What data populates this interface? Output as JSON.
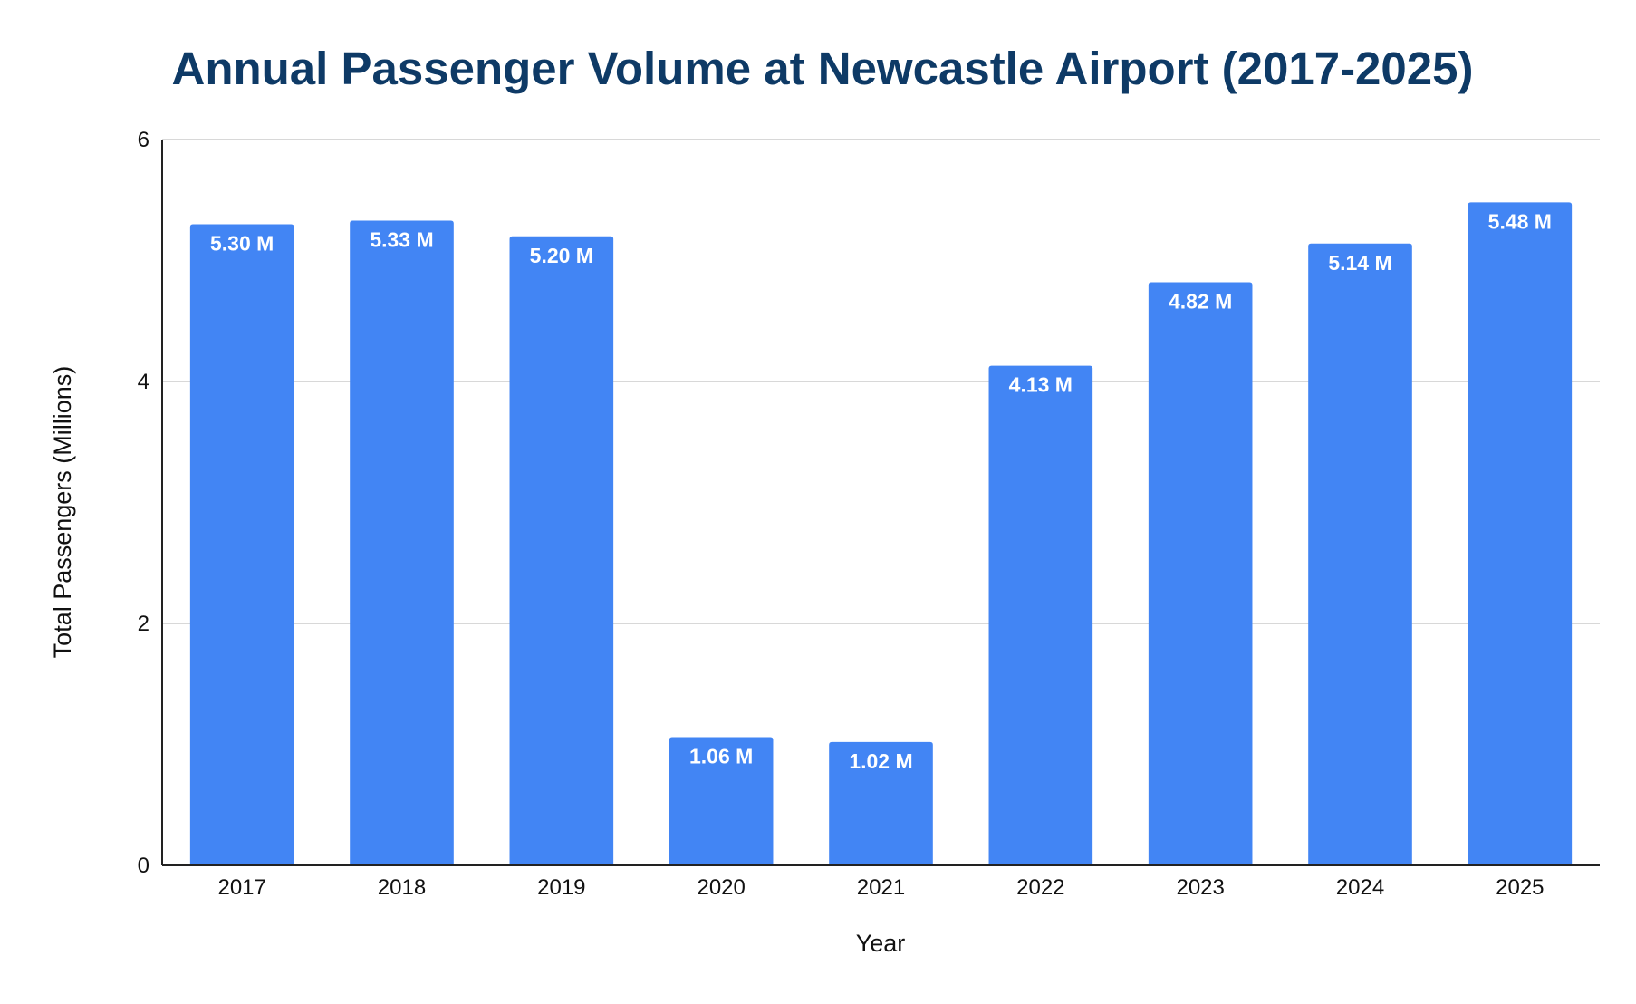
{
  "chart_data": {
    "type": "bar",
    "title": "Annual Passenger Volume at Newcastle Airport (2017-2025)",
    "xlabel": "Year",
    "ylabel": "Total Passengers (Millions)",
    "categories": [
      "2017",
      "2018",
      "2019",
      "2020",
      "2021",
      "2022",
      "2023",
      "2024",
      "2025"
    ],
    "values": [
      5.3,
      5.33,
      5.2,
      1.06,
      1.02,
      4.13,
      4.82,
      5.14,
      5.48
    ],
    "data_labels": [
      "5.30 M",
      "5.33 M",
      "5.20 M",
      "1.06 M",
      "1.02 M",
      "4.13 M",
      "4.82 M",
      "5.14 M",
      "5.48 M"
    ],
    "ylim": [
      0,
      6
    ],
    "yticks": [
      0,
      2,
      4,
      6
    ],
    "grid": true,
    "legend": "none"
  },
  "colors": {
    "bar": "#4285f4",
    "title": "#0e3a66",
    "grid": "#cccccc",
    "axis": "#222222",
    "label": "#ffffff"
  }
}
